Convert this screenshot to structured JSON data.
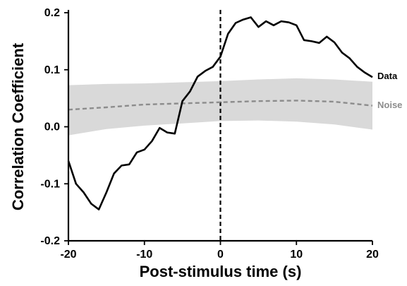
{
  "chart_data": {
    "type": "line",
    "xlabel": "Post-stimulus time (s)",
    "ylabel": "Correlation Coefficient",
    "xlim": [
      -20,
      20
    ],
    "ylim": [
      -0.2,
      0.2
    ],
    "x_ticks": [
      -20,
      -10,
      0,
      10,
      20
    ],
    "y_ticks": [
      -0.2,
      -0.1,
      0.0,
      0.1,
      0.2
    ],
    "x_tick_labels": [
      "-20",
      "-10",
      "0",
      "10",
      "20"
    ],
    "y_tick_labels": [
      "-0.2",
      "-0.1",
      "0.0",
      "0.1",
      "0.2"
    ],
    "grid": false,
    "vline_x": 0,
    "series": [
      {
        "name": "Data",
        "color": "#000000",
        "style": "solid",
        "x": [
          -20,
          -19,
          -18,
          -17,
          -16,
          -15,
          -14,
          -13,
          -12,
          -11,
          -10,
          -9,
          -8,
          -7,
          -6,
          -5,
          -4,
          -3,
          -2,
          -1,
          0,
          1,
          2,
          3,
          4,
          5,
          6,
          7,
          8,
          9,
          10,
          11,
          12,
          13,
          14,
          15,
          16,
          17,
          18,
          19,
          20
        ],
        "values": [
          -0.06,
          -0.1,
          -0.115,
          -0.135,
          -0.145,
          -0.115,
          -0.082,
          -0.068,
          -0.066,
          -0.045,
          -0.04,
          -0.025,
          -0.002,
          -0.01,
          -0.012,
          0.045,
          0.062,
          0.088,
          0.098,
          0.105,
          0.123,
          0.163,
          0.182,
          0.188,
          0.192,
          0.175,
          0.185,
          0.178,
          0.185,
          0.183,
          0.178,
          0.152,
          0.15,
          0.147,
          0.158,
          0.148,
          0.13,
          0.12,
          0.105,
          0.095,
          0.087
        ]
      },
      {
        "name": "Noise",
        "color": "#8c8c8c",
        "style": "dashed",
        "x": [
          -20,
          -15,
          -10,
          -5,
          0,
          5,
          10,
          15,
          20
        ],
        "values": [
          0.03,
          0.034,
          0.039,
          0.041,
          0.043,
          0.045,
          0.046,
          0.044,
          0.037
        ],
        "band_upper": [
          0.073,
          0.075,
          0.076,
          0.078,
          0.08,
          0.083,
          0.085,
          0.083,
          0.079
        ],
        "band_lower": [
          -0.015,
          -0.004,
          0.002,
          0.006,
          0.01,
          0.011,
          0.009,
          0.004,
          -0.005
        ],
        "band_color": "#d9d9d9"
      }
    ]
  }
}
